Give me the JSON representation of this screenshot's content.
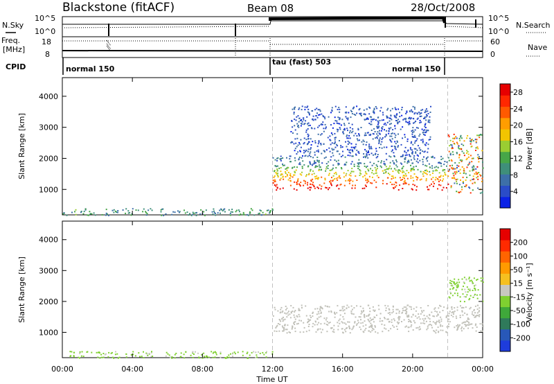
{
  "header": {
    "title": "Blackstone (fitACF)",
    "beam": "Beam 08",
    "date": "28/Oct/2008"
  },
  "summary_panels": {
    "nsky_label": "N.Sky",
    "nsearch_label": "N.Search",
    "nsky_ticks": [
      "10^5",
      "10^0"
    ],
    "nsearch_ticks": [
      "10^5",
      "10^0"
    ],
    "freq_label": "Freq.",
    "freq_unit": "[MHz]",
    "freq_ticks": [
      "18",
      "8"
    ],
    "nave_label": "Nave",
    "nave_ticks": [
      "60",
      "0"
    ],
    "cpid_label": "CPID",
    "cpid_segments": [
      {
        "label": "normal 150",
        "start_hour": 0,
        "end_hour": 12
      },
      {
        "label": "tau (fast) 503",
        "start_hour": 12,
        "end_hour": 22
      },
      {
        "label": "normal 150",
        "start_hour": 22,
        "end_hour": 24
      }
    ],
    "mode_change_hours": [
      12,
      22
    ]
  },
  "colors": {
    "power_scale": [
      "#0a22e6",
      "#2a4cc8",
      "#3d6fa8",
      "#3f8f7a",
      "#47a648",
      "#9acd32",
      "#f2c500",
      "#ff9d00",
      "#ff5a00",
      "#ff2800",
      "#e60000"
    ],
    "velocity_scale": [
      "#1e3cdc",
      "#2858b8",
      "#2f7a5a",
      "#3fa83a",
      "#7fd030",
      "#c8c8c0",
      "#f5c020",
      "#ff9a00",
      "#ff6400",
      "#ff2a00",
      "#e60000"
    ],
    "ground_scatter": "#c0c0b8",
    "dashed_line": "#c0c0c0"
  },
  "chart_data": [
    {
      "type": "heatmap",
      "title": "",
      "xlabel": "Time UT",
      "ylabel": "Slant Range [km]",
      "xlim": [
        0,
        24
      ],
      "ylim": [
        180,
        4600
      ],
      "x_ticks": [
        "00:00",
        "04:00",
        "08:00",
        "12:00",
        "16:00",
        "20:00",
        "00:00"
      ],
      "y_ticks": [
        1000,
        2000,
        3000,
        4000
      ],
      "colorbar": {
        "label": "Power [dB]",
        "ticks": [
          "4",
          "8",
          "12",
          "16",
          "20",
          "24",
          "28"
        ],
        "range": [
          0,
          30
        ]
      },
      "regions": [
        {
          "desc": "sparse near-range echoes",
          "x": [
            0,
            12
          ],
          "y_km": [
            180,
            400
          ],
          "value_db": [
            6,
            14
          ]
        },
        {
          "desc": "main ionospheric band, strong lower edge",
          "x": [
            12,
            22
          ],
          "y_km": [
            1000,
            1800
          ],
          "value_db": [
            10,
            30
          ]
        },
        {
          "desc": "upper weak band",
          "x": [
            12,
            22
          ],
          "y_km": [
            1800,
            2100
          ],
          "value_db": [
            4,
            10
          ]
        },
        {
          "desc": "rising arc after mode change",
          "x": [
            22,
            24
          ],
          "y_km": [
            900,
            2800
          ],
          "value_db": [
            4,
            28
          ]
        },
        {
          "desc": "scattered weak echoes",
          "x": [
            13,
            21
          ],
          "y_km": [
            2100,
            3700
          ],
          "value_db": [
            2,
            8
          ]
        }
      ]
    },
    {
      "type": "heatmap",
      "title": "",
      "xlabel": "Time UT",
      "ylabel": "Slant Range [km]",
      "xlim": [
        0,
        24
      ],
      "ylim": [
        180,
        4600
      ],
      "x_ticks": [
        "00:00",
        "04:00",
        "08:00",
        "12:00",
        "16:00",
        "20:00",
        "00:00"
      ],
      "y_ticks": [
        1000,
        2000,
        3000,
        4000
      ],
      "colorbar": {
        "label": "Velocity [m s⁻¹]",
        "ticks": [
          "200",
          "100",
          "50",
          "15",
          "-15",
          "-50",
          "-100",
          "-200"
        ],
        "range": [
          -250,
          250
        ]
      },
      "regions": [
        {
          "desc": "near-range slow negative velocities",
          "x": [
            0,
            12
          ],
          "y_km": [
            180,
            400
          ],
          "value_ms": [
            -60,
            -15
          ]
        },
        {
          "desc": "ground scatter band",
          "x": [
            12,
            24
          ],
          "y_km": [
            1000,
            1900
          ],
          "value_ms": [
            -15,
            15
          ]
        },
        {
          "desc": "arc after mode change",
          "x": [
            22,
            24
          ],
          "y_km": [
            2000,
            2800
          ],
          "value_ms": [
            -50,
            -15
          ]
        }
      ]
    }
  ]
}
